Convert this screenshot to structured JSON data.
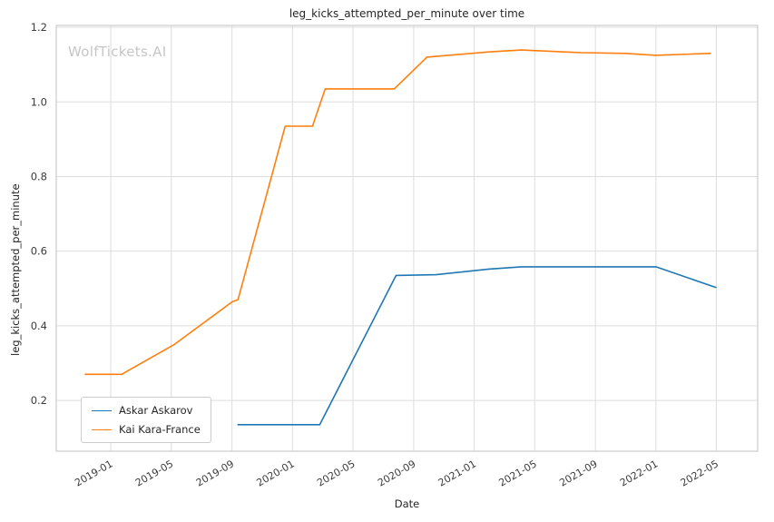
{
  "chart_data": {
    "type": "line",
    "title": "leg_kicks_attempted_per_minute over time",
    "xlabel": "Date",
    "ylabel": "leg_kicks_attempted_per_minute",
    "watermark": "WolfTickets.AI",
    "grid": true,
    "legend_position": "lower left",
    "x_range": [
      2018.7,
      2022.56
    ],
    "y_range": [
      0.064,
      1.205
    ],
    "x_ticks": [
      {
        "value": 2019.0,
        "label": "2019-01"
      },
      {
        "value": 2019.333,
        "label": "2019-05"
      },
      {
        "value": 2019.667,
        "label": "2019-09"
      },
      {
        "value": 2020.0,
        "label": "2020-01"
      },
      {
        "value": 2020.333,
        "label": "2020-05"
      },
      {
        "value": 2020.667,
        "label": "2020-09"
      },
      {
        "value": 2021.0,
        "label": "2021-01"
      },
      {
        "value": 2021.333,
        "label": "2021-05"
      },
      {
        "value": 2021.667,
        "label": "2021-09"
      },
      {
        "value": 2022.0,
        "label": "2022-01"
      },
      {
        "value": 2022.333,
        "label": "2022-05"
      }
    ],
    "y_ticks": [
      0.2,
      0.4,
      0.6,
      0.8,
      1.0,
      1.2
    ],
    "series": [
      {
        "name": "Askar Askarov",
        "color": "#1f77b4",
        "points": [
          [
            2019.7,
            0.135
          ],
          [
            2020.15,
            0.135
          ],
          [
            2020.57,
            0.535
          ],
          [
            2020.79,
            0.537
          ],
          [
            2021.08,
            0.552
          ],
          [
            2021.26,
            0.558
          ],
          [
            2021.67,
            0.558
          ],
          [
            2022.0,
            0.558
          ],
          [
            2022.33,
            0.503
          ]
        ]
      },
      {
        "name": "Kai Kara-France",
        "color": "#ff7f0e",
        "points": [
          [
            2018.86,
            0.27
          ],
          [
            2019.06,
            0.27
          ],
          [
            2019.35,
            0.35
          ],
          [
            2019.67,
            0.465
          ],
          [
            2019.7,
            0.47
          ],
          [
            2019.96,
            0.935
          ],
          [
            2020.11,
            0.935
          ],
          [
            2020.18,
            1.035
          ],
          [
            2020.56,
            1.035
          ],
          [
            2020.74,
            1.12
          ],
          [
            2021.08,
            1.134
          ],
          [
            2021.26,
            1.139
          ],
          [
            2021.59,
            1.132
          ],
          [
            2021.83,
            1.13
          ],
          [
            2022.0,
            1.125
          ],
          [
            2022.3,
            1.13
          ]
        ]
      }
    ]
  }
}
